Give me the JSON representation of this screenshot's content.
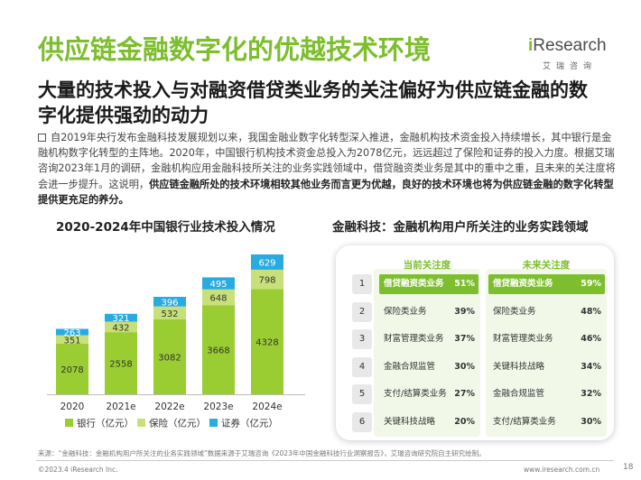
{
  "header": {
    "title": "供应链金融数字化的优越技术环境",
    "subtitle": "大量的技术投入与对融资借贷类业务的关注偏好为供应链金融的数字化提供强劲的动力",
    "logo_text": "Research",
    "logo_prefix": "i",
    "logo_sub": "艾瑞咨询"
  },
  "body": {
    "text_plain": "自2019年央行发布金融科技发展规划以来，我国金融业数字化转型深入推进，金融机构技术资金投入持续增长，其中银行是金融机构数字化转型的主阵地。2020年，中国银行机构技术资金总投入为2078亿元，远远超过了保险和证券的投入力度。根据艾瑞咨询2023年1月的调研，金融机构应用金融科技所关注的业务实践领域中，借贷融资类业务是其中的重中之重，且未来的关注度将会进一步提升。这说明，",
    "text_bold": "供应链金融所处的技术环境相较其他业务而言更为优越，良好的技术环境也将为供应链金融的数字化转型提供更充足的养分。"
  },
  "chart_title": "2020-2024年中国银行业技术投入情况",
  "chart_data": {
    "type": "bar",
    "stacked": true,
    "categories": [
      "2020",
      "2021e",
      "2022e",
      "2023e",
      "2024e"
    ],
    "series": [
      {
        "name": "银行（亿元）",
        "values": [
          2078,
          2558,
          3082,
          3668,
          4328
        ],
        "color": "#9ACD32"
      },
      {
        "name": "保险（亿元）",
        "values": [
          351,
          432,
          532,
          648,
          798
        ],
        "color": "#C8E07A"
      },
      {
        "name": "证券（亿元）",
        "values": [
          263,
          321,
          396,
          495,
          629
        ],
        "color": "#29ABE2"
      }
    ],
    "legend_position": "bottom"
  },
  "panel": {
    "title": "金融科技：金融机构用户所关注的业务实践领域",
    "col_now": "当前关注度",
    "col_future": "未来关注度",
    "rows": [
      {
        "rank": "1",
        "now_label": "借贷融资类业务",
        "now_val": "51%",
        "fut_label": "借贷融资类业务",
        "fut_val": "59%"
      },
      {
        "rank": "2",
        "now_label": "保险类业务",
        "now_val": "39%",
        "fut_label": "保险类业务",
        "fut_val": "48%"
      },
      {
        "rank": "3",
        "now_label": "财富管理类业务",
        "now_val": "37%",
        "fut_label": "财富管理类业务",
        "fut_val": "46%"
      },
      {
        "rank": "4",
        "now_label": "金融合规监管",
        "now_val": "30%",
        "fut_label": "关键科技战略",
        "fut_val": "34%"
      },
      {
        "rank": "5",
        "now_label": "支付/结算类业务",
        "now_val": "27%",
        "fut_label": "金融合规监管",
        "fut_val": "32%"
      },
      {
        "rank": "6",
        "now_label": "关键科技战略",
        "now_val": "20%",
        "fut_label": "支付/结算类业务",
        "fut_val": "30%"
      }
    ]
  },
  "footer": {
    "source": "来源：“金融科技：金融机构用户所关注的业务实践领域”数据来源于艾瑞咨询《2023年中国金融科技行业洞察报告》，艾瑞咨询研究院自主研究绘制。",
    "copyright": "©2023.4 iResearch Inc.",
    "site": "www.iresearch.com.cn",
    "page": "18"
  }
}
